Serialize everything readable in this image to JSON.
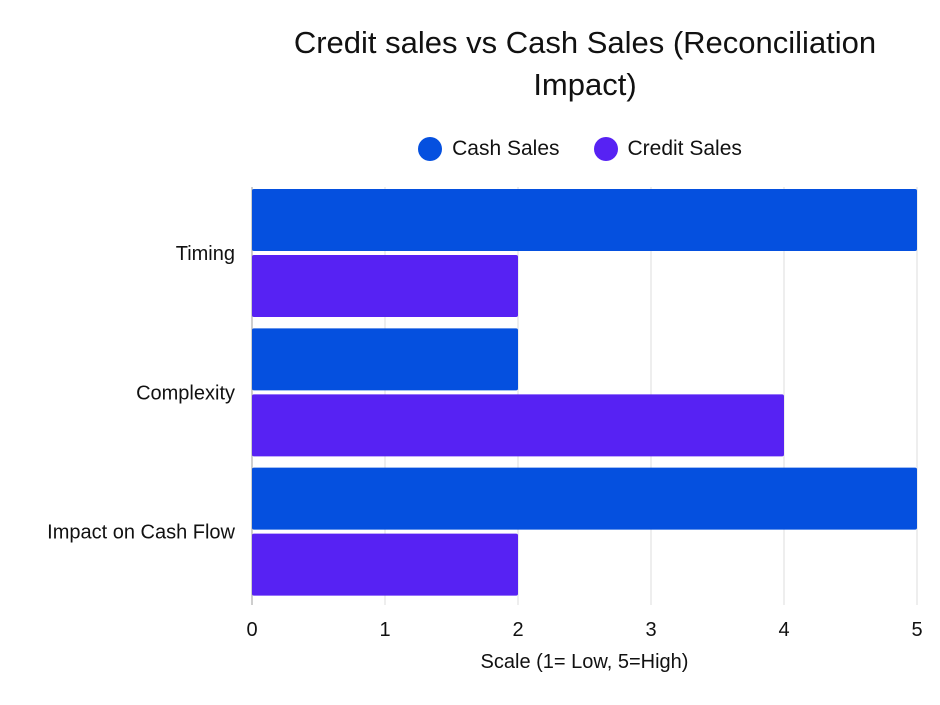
{
  "chart_data": {
    "type": "bar",
    "orientation": "horizontal",
    "title": "Credit sales vs Cash Sales (Reconciliation Impact)",
    "categories": [
      "Timing",
      "Complexity",
      "Impact on Cash Flow"
    ],
    "series": [
      {
        "name": "Cash Sales",
        "values": [
          5,
          2,
          5
        ],
        "color": "#0550DF"
      },
      {
        "name": "Credit Sales",
        "values": [
          2,
          4,
          2
        ],
        "color": "#5722F3"
      }
    ],
    "xlabel": "Scale (1= Low, 5=High)",
    "ylabel": "",
    "xlim": [
      0,
      5
    ],
    "xticks": [
      0,
      1,
      2,
      3,
      4,
      5
    ],
    "grid": true,
    "legend_position": "top"
  }
}
